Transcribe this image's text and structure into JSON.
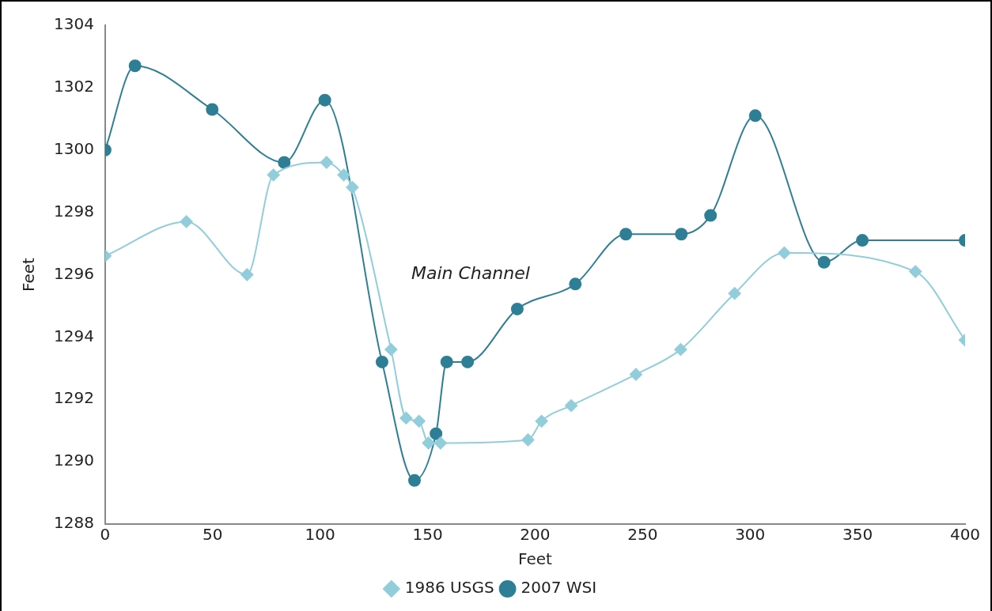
{
  "chart_data": {
    "type": "line",
    "xlabel": "Feet",
    "ylabel": "Feet",
    "xlim": [
      0,
      400
    ],
    "ylim": [
      1288,
      1304
    ],
    "xticks": [
      0,
      50,
      100,
      150,
      200,
      250,
      300,
      350,
      400
    ],
    "yticks": [
      1288,
      1290,
      1292,
      1294,
      1296,
      1298,
      1300,
      1302,
      1304
    ],
    "grid": false,
    "legend": "bottom",
    "line_style": "solid",
    "annotations": [
      "Main Channel"
    ],
    "series": [
      {
        "name": "1986 USGS",
        "color": "#92cddb",
        "marker": "diamond",
        "x": [
          0,
          37.8,
          66,
          78.3,
          103,
          111,
          115,
          133,
          140,
          146,
          150.4,
          156,
          196.7,
          203,
          216.8,
          246.9,
          267.7,
          292.8,
          315.9,
          376.9,
          400
        ],
        "values": [
          1296.6,
          1297.7,
          1296,
          1299.2,
          1299.6,
          1299.2,
          1298.8,
          1293.6,
          1291.4,
          1291.3,
          1290.6,
          1290.6,
          1290.7,
          1291.3,
          1291.8,
          1292.8,
          1293.6,
          1295.4,
          1296.7,
          1296.1,
          1293.9
        ]
      },
      {
        "name": "2007 WSI",
        "color": "#2e7f95",
        "marker": "circle",
        "x": [
          0,
          13.9,
          49.8,
          83.3,
          102.2,
          128.8,
          143.9,
          153.9,
          158.9,
          168.6,
          191.7,
          218.7,
          242.2,
          268,
          281.6,
          302.4,
          334.4,
          352.2,
          400
        ],
        "values": [
          1300,
          1302.7,
          1301.3,
          1299.6,
          1301.6,
          1293.2,
          1289.4,
          1290.9,
          1293.2,
          1293.2,
          1294.9,
          1295.7,
          1297.3,
          1297.3,
          1297.9,
          1301.1,
          1296.4,
          1297.1,
          1297.1
        ]
      }
    ]
  }
}
